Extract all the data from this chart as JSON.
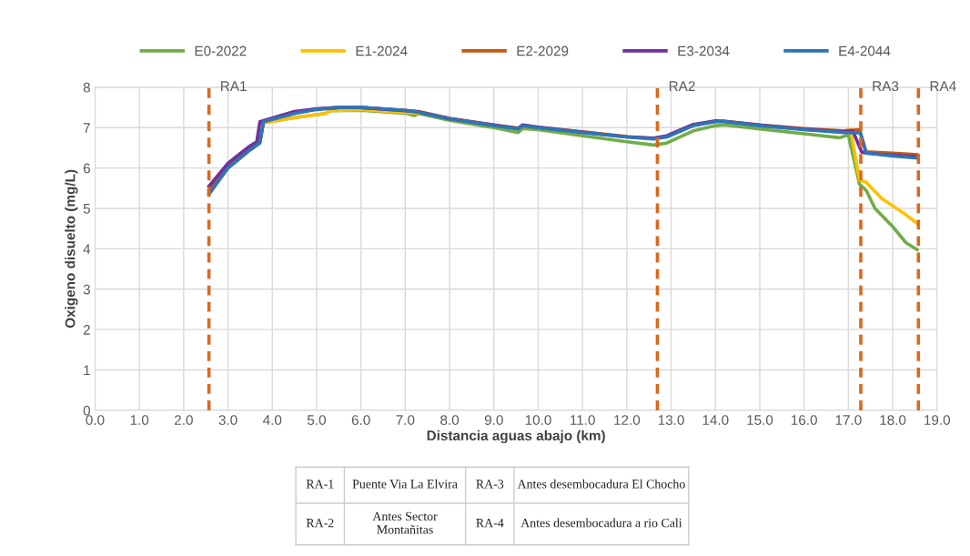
{
  "chart_data": {
    "type": "line",
    "xlabel": "Distancia aguas abajo (km)",
    "ylabel": "Oxigeno disuelto (mg/L)",
    "xlim": [
      0,
      19
    ],
    "ylim": [
      0,
      8
    ],
    "xticks": [
      {
        "value": 0,
        "label": "0.0"
      },
      {
        "value": 1,
        "label": "1.0"
      },
      {
        "value": 2,
        "label": "2.0"
      },
      {
        "value": 3,
        "label": "3.0"
      },
      {
        "value": 4,
        "label": "4.0"
      },
      {
        "value": 5,
        "label": "5.0"
      },
      {
        "value": 6,
        "label": "6.0"
      },
      {
        "value": 7,
        "label": "7.0"
      },
      {
        "value": 8,
        "label": "8.0"
      },
      {
        "value": 9,
        "label": "9.0"
      },
      {
        "value": 10,
        "label": "10.0"
      },
      {
        "value": 11,
        "label": "11.0"
      },
      {
        "value": 12,
        "label": "12.0"
      },
      {
        "value": 13,
        "label": "13.0"
      },
      {
        "value": 14,
        "label": "14.0"
      },
      {
        "value": 15,
        "label": "15.0"
      },
      {
        "value": 16,
        "label": "16.0"
      },
      {
        "value": 17,
        "label": "17.0"
      },
      {
        "value": 18,
        "label": "18.0"
      },
      {
        "value": 19,
        "label": "19.0"
      }
    ],
    "yticks": [
      0,
      1,
      2,
      3,
      4,
      5,
      6,
      7,
      8
    ],
    "grid": true,
    "legend": "top",
    "marker": "none",
    "line_style": "solid",
    "series": [
      {
        "name": "E0-2022",
        "color": "#70ad47",
        "x": [
          2.57,
          3.0,
          3.5,
          3.72,
          3.8,
          4.5,
          5.2,
          5.3,
          6.0,
          7.0,
          7.2,
          7.3,
          8.0,
          9.0,
          9.55,
          9.65,
          10.0,
          11.0,
          12.0,
          12.6,
          12.9,
          13.5,
          14.0,
          14.2,
          15.0,
          16.0,
          16.8,
          17.0,
          17.25,
          17.4,
          17.6,
          18.0,
          18.3,
          18.55
        ],
        "values": [
          5.4,
          6.0,
          6.45,
          6.62,
          7.12,
          7.25,
          7.35,
          7.42,
          7.43,
          7.36,
          7.3,
          7.35,
          7.18,
          7.0,
          6.88,
          6.98,
          6.95,
          6.8,
          6.65,
          6.57,
          6.62,
          6.92,
          7.05,
          7.07,
          6.97,
          6.85,
          6.75,
          6.82,
          5.6,
          5.45,
          5.0,
          4.55,
          4.15,
          3.98
        ]
      },
      {
        "name": "E1-2024",
        "color": "#ffc000",
        "x": [
          3.8,
          4.5,
          5.2,
          5.3,
          6.0,
          7.0,
          7.3,
          12.0,
          16.9,
          17.05,
          17.25,
          17.4,
          17.75,
          18.25,
          18.55
        ],
        "values": [
          7.12,
          7.25,
          7.35,
          7.42,
          7.45,
          7.38,
          7.36,
          null,
          6.92,
          6.95,
          5.7,
          5.65,
          5.25,
          4.88,
          4.63
        ]
      },
      {
        "name": "E2-2029",
        "color": "#c55a11",
        "x": [
          2.57,
          3.0,
          3.5,
          3.72,
          3.8,
          4.5,
          5.0,
          5.5,
          6.0,
          7.0,
          7.3,
          8.0,
          9.0,
          9.55,
          9.65,
          10.0,
          11.0,
          12.0,
          12.6,
          12.9,
          13.5,
          14.0,
          14.2,
          15.0,
          16.0,
          16.9,
          17.25,
          17.4,
          18.0,
          18.55
        ],
        "values": [
          5.45,
          6.05,
          6.5,
          6.65,
          7.15,
          7.37,
          7.46,
          7.5,
          7.5,
          7.43,
          7.4,
          7.23,
          7.07,
          6.99,
          7.06,
          7.01,
          6.9,
          6.78,
          6.73,
          6.78,
          7.06,
          7.16,
          7.16,
          7.07,
          6.98,
          6.92,
          6.95,
          6.4,
          6.37,
          6.33
        ]
      },
      {
        "name": "E3-2034",
        "color": "#7030a0",
        "x": [
          2.57,
          3.0,
          3.5,
          3.65,
          3.72,
          4.5,
          5.0,
          5.5,
          6.0,
          7.0,
          7.3,
          8.0,
          9.0,
          9.55,
          9.65,
          10.0,
          11.0,
          12.0,
          12.6,
          12.9,
          13.5,
          14.0,
          14.2,
          15.0,
          16.0,
          16.9,
          17.1,
          17.3,
          17.4,
          18.0,
          18.55
        ],
        "values": [
          5.55,
          6.12,
          6.55,
          6.65,
          7.15,
          7.4,
          7.47,
          7.5,
          7.5,
          7.42,
          7.39,
          7.22,
          7.06,
          6.98,
          7.07,
          7.01,
          6.89,
          6.77,
          6.74,
          6.8,
          7.08,
          7.17,
          7.16,
          7.06,
          6.96,
          6.9,
          6.92,
          6.4,
          6.37,
          6.32,
          6.28
        ]
      },
      {
        "name": "E4-2044",
        "color": "#2e75b6",
        "x": [
          2.57,
          3.0,
          3.5,
          3.72,
          3.8,
          4.5,
          5.0,
          5.5,
          6.0,
          7.0,
          7.3,
          8.0,
          9.0,
          9.55,
          9.65,
          10.0,
          11.0,
          12.0,
          12.6,
          12.9,
          13.5,
          14.0,
          14.2,
          15.0,
          16.0,
          16.9,
          17.27,
          17.4,
          18.0,
          18.55
        ],
        "values": [
          5.35,
          6.0,
          6.45,
          6.63,
          7.15,
          7.35,
          7.45,
          7.5,
          7.5,
          7.43,
          7.38,
          7.22,
          7.05,
          6.97,
          7.05,
          7.0,
          6.88,
          6.77,
          6.72,
          6.77,
          7.05,
          7.15,
          7.15,
          7.05,
          6.95,
          6.88,
          6.87,
          6.37,
          6.3,
          6.25
        ]
      }
    ],
    "ref_lines": [
      {
        "axis": "x",
        "value": 2.57,
        "label": "RA1",
        "color": "#d9691f",
        "line_style": "dashed"
      },
      {
        "axis": "x",
        "value": 12.69,
        "label": "RA2",
        "color": "#d9691f",
        "line_style": "dashed"
      },
      {
        "axis": "x",
        "value": 17.28,
        "label": "RA3",
        "color": "#d9691f",
        "line_style": "dashed"
      },
      {
        "axis": "x",
        "value": 18.58,
        "label": "RA4",
        "color": "#d9691f",
        "line_style": "dashed"
      }
    ],
    "annotations": [
      "RA-1",
      "Puente Via La Elvira",
      "RA-3",
      "Antes desembocadura El Chocho",
      "RA-2",
      "Antes Sector\nMontañitas",
      "RA-4",
      "Antes desembocadura a rio Cali"
    ]
  }
}
